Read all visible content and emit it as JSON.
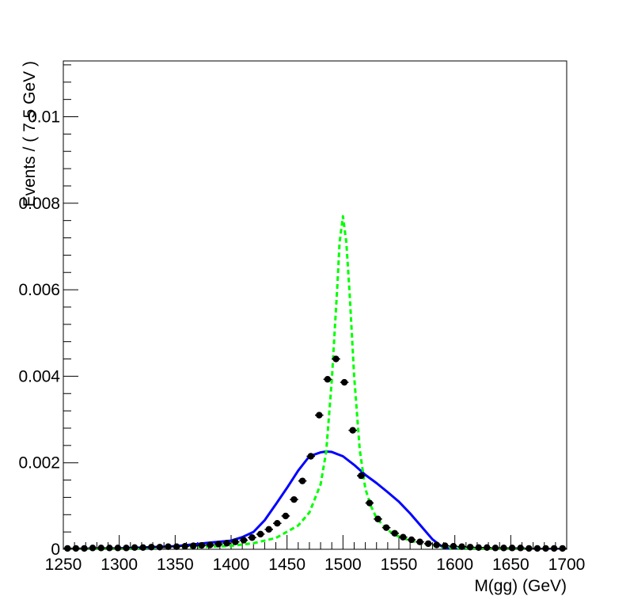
{
  "chart_data": {
    "type": "scatter",
    "title": "",
    "xlabel": "M(gg) (GeV)",
    "ylabel": "Events / ( 7.5 GeV )",
    "xlim": [
      1250,
      1700
    ],
    "ylim": [
      0,
      0.01129
    ],
    "x_ticks": [
      1250,
      1300,
      1350,
      1400,
      1450,
      1500,
      1550,
      1600,
      1650,
      1700
    ],
    "x_tick_labels": [
      "1250",
      "1300",
      "1350",
      "1400",
      "1450",
      "1500",
      "1550",
      "1600",
      "1650",
      "1700"
    ],
    "y_ticks": [
      0,
      0.002,
      0.004,
      0.006,
      0.008,
      0.01
    ],
    "y_tick_labels": [
      "0",
      "0.002",
      "0.004",
      "0.006",
      "0.008",
      "0.01"
    ],
    "grid": false,
    "legend": "none",
    "series": [
      {
        "kind": "points",
        "color": "#000000",
        "x_error": 3.75,
        "x": [
          1253.75,
          1261.25,
          1268.75,
          1276.25,
          1283.75,
          1291.25,
          1298.75,
          1306.25,
          1313.75,
          1321.25,
          1328.75,
          1336.25,
          1343.75,
          1351.25,
          1358.75,
          1366.25,
          1373.75,
          1381.25,
          1388.75,
          1396.25,
          1403.75,
          1411.25,
          1418.75,
          1426.25,
          1433.75,
          1441.25,
          1448.75,
          1456.25,
          1463.75,
          1471.25,
          1478.75,
          1486.25,
          1493.75,
          1501.25,
          1508.75,
          1516.25,
          1523.75,
          1531.25,
          1538.75,
          1546.25,
          1553.75,
          1561.25,
          1568.75,
          1576.25,
          1583.75,
          1591.25,
          1598.75,
          1606.25,
          1613.75,
          1621.25,
          1628.75,
          1636.25,
          1643.75,
          1651.25,
          1658.75,
          1666.25,
          1673.75,
          1681.25,
          1688.75,
          1696.25
        ],
        "y": [
          2e-05,
          2e-05,
          2e-05,
          3e-05,
          3e-05,
          3e-05,
          3e-05,
          3e-05,
          4e-05,
          4e-05,
          5e-05,
          5e-05,
          6e-05,
          6e-05,
          7e-05,
          8e-05,
          9e-05,
          0.0001,
          0.00012,
          0.00014,
          0.00017,
          0.00021,
          0.00027,
          0.00035,
          0.00046,
          0.0006,
          0.00077,
          0.00115,
          0.00158,
          0.00215,
          0.0031,
          0.00393,
          0.0044,
          0.00386,
          0.00275,
          0.0017,
          0.00107,
          0.0007,
          0.0005,
          0.00037,
          0.00028,
          0.00022,
          0.00017,
          0.00013,
          0.0001,
          8e-05,
          7e-05,
          6e-05,
          5e-05,
          4e-05,
          4e-05,
          3e-05,
          3e-05,
          3e-05,
          3e-05,
          2e-05,
          2e-05,
          2e-05,
          2e-05,
          2e-05
        ]
      },
      {
        "kind": "line",
        "color": "#0000ff",
        "dash": "solid",
        "x": [
          1250,
          1300,
          1350,
          1380,
          1400,
          1410,
          1420,
          1430,
          1440,
          1450,
          1460,
          1470,
          1480,
          1485,
          1490,
          1500,
          1510,
          1520,
          1530,
          1540,
          1550,
          1560,
          1570,
          1580,
          1590,
          1600,
          1650,
          1700
        ],
        "y": [
          1e-05,
          2e-05,
          7e-05,
          0.00015,
          0.0002,
          0.00028,
          0.0004,
          0.00067,
          0.00104,
          0.00142,
          0.00182,
          0.00215,
          0.00224,
          0.00226,
          0.00225,
          0.00215,
          0.00195,
          0.00172,
          0.00153,
          0.00132,
          0.0011,
          0.00083,
          0.00053,
          0.00023,
          3e-05,
          1e-05,
          0.0,
          0.0
        ]
      },
      {
        "kind": "line",
        "color": "#00ff00",
        "dash": "dashed",
        "x": [
          1250,
          1300,
          1350,
          1400,
          1420,
          1440,
          1460,
          1470,
          1480,
          1485,
          1490,
          1495,
          1497,
          1500,
          1503,
          1506,
          1510,
          1515,
          1520,
          1525,
          1530,
          1540,
          1550,
          1560,
          1570,
          1580,
          1590,
          1600,
          1650,
          1700
        ],
        "y": [
          0.0,
          1e-05,
          3e-05,
          8e-05,
          0.00014,
          0.00026,
          0.00055,
          0.00085,
          0.0015,
          0.00225,
          0.0039,
          0.0061,
          0.0071,
          0.0077,
          0.0071,
          0.0059,
          0.004,
          0.0023,
          0.0014,
          0.001,
          0.00072,
          0.00044,
          0.00029,
          0.0002,
          0.00013,
          8e-05,
          4e-05,
          2e-05,
          0.0,
          0.0
        ]
      }
    ]
  }
}
